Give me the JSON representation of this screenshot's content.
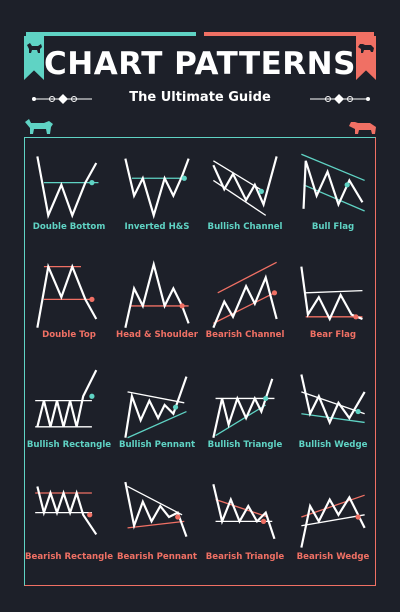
{
  "title": "CHART PATTERNS",
  "subtitle": "The Ultimate Guide",
  "colors": {
    "background": "#1d2029",
    "bullish": "#5fd3c4",
    "bearish": "#f07064",
    "line": "#ffffff"
  },
  "icons": {
    "top_left": "bull-icon",
    "top_right": "bear-icon",
    "mascot_left": "bull-icon",
    "mascot_right": "bear-icon"
  },
  "patterns": [
    {
      "label": "Double Bottom",
      "bias": "bullish"
    },
    {
      "label": "Inverted H&S",
      "bias": "bullish"
    },
    {
      "label": "Bullish Channel",
      "bias": "bullish"
    },
    {
      "label": "Bull Flag",
      "bias": "bullish"
    },
    {
      "label": "Double Top",
      "bias": "bearish"
    },
    {
      "label": "Head & Shoulder",
      "bias": "bearish"
    },
    {
      "label": "Bearish Channel",
      "bias": "bearish"
    },
    {
      "label": "Bear Flag",
      "bias": "bearish"
    },
    {
      "label": "Bullish Rectangle",
      "bias": "bullish"
    },
    {
      "label": "Bullish Pennant",
      "bias": "bullish"
    },
    {
      "label": "Bullish Triangle",
      "bias": "bullish"
    },
    {
      "label": "Bullish Wedge",
      "bias": "bullish"
    },
    {
      "label": "Bearish Rectangle",
      "bias": "bearish"
    },
    {
      "label": "Bearish Pennant",
      "bias": "bearish"
    },
    {
      "label": "Bearish Triangle",
      "bias": "bearish"
    },
    {
      "label": "Bearish Wedge",
      "bias": "bearish"
    }
  ]
}
